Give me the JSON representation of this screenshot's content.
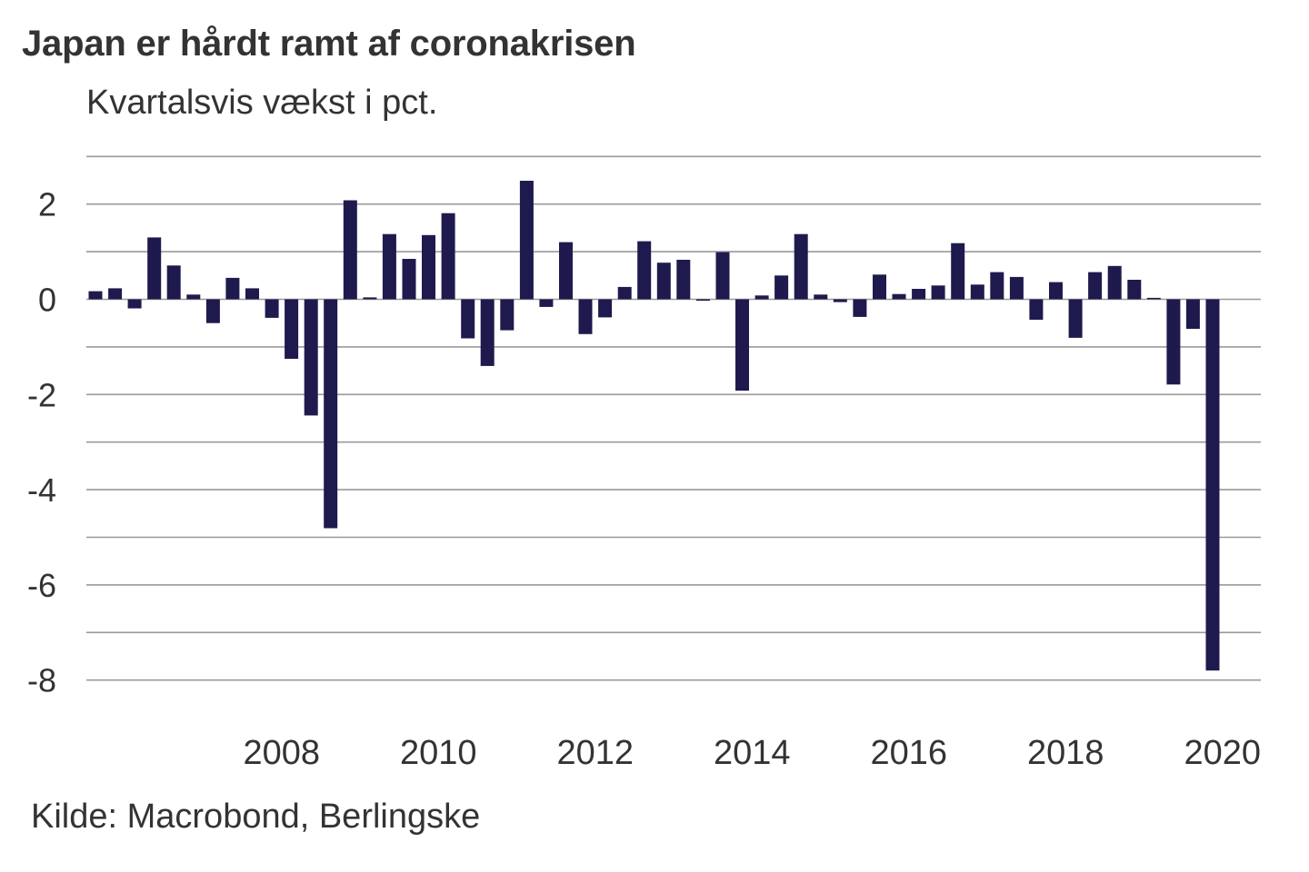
{
  "chart_data": {
    "type": "bar",
    "title": "Japan er hårdt ramt af coronakrisen",
    "subtitle": "Kvartalsvis vækst i pct.",
    "source": "Kilde: Macrobond, Berlingske",
    "xlabel": "",
    "ylabel": "",
    "ylim": [
      -8.5,
      3
    ],
    "grid": true,
    "yticks": [
      2,
      0,
      -2,
      -4,
      -6,
      -8
    ],
    "ytick_labels": [
      "2",
      "0",
      "-2",
      "-4",
      "-6",
      "-8"
    ],
    "xtick_labels": [
      "2008",
      "2010",
      "2012",
      "2014",
      "2016",
      "2018",
      "2020"
    ],
    "bar_color": "#1f1a4d",
    "x_start": "2006Q1",
    "x_end": "2020Q2",
    "categories": [
      "2006Q1",
      "2006Q2",
      "2006Q3",
      "2006Q4",
      "2007Q1",
      "2007Q2",
      "2007Q3",
      "2007Q4",
      "2008Q1",
      "2008Q2",
      "2008Q3",
      "2008Q4",
      "2009Q1",
      "2009Q2",
      "2009Q3",
      "2009Q4",
      "2010Q1",
      "2010Q2",
      "2010Q3",
      "2010Q4",
      "2011Q1",
      "2011Q2",
      "2011Q3",
      "2011Q4",
      "2012Q1",
      "2012Q2",
      "2012Q3",
      "2012Q4",
      "2013Q1",
      "2013Q2",
      "2013Q3",
      "2013Q4",
      "2014Q1",
      "2014Q2",
      "2014Q3",
      "2014Q4",
      "2015Q1",
      "2015Q2",
      "2015Q3",
      "2015Q4",
      "2016Q1",
      "2016Q2",
      "2016Q3",
      "2016Q4",
      "2017Q1",
      "2017Q2",
      "2017Q3",
      "2017Q4",
      "2018Q1",
      "2018Q2",
      "2018Q3",
      "2018Q4",
      "2019Q1",
      "2019Q2",
      "2019Q3",
      "2019Q4",
      "2020Q1",
      "2020Q2"
    ],
    "values": [
      0.17,
      0.23,
      -0.19,
      1.3,
      0.71,
      0.1,
      -0.5,
      0.45,
      0.23,
      -0.39,
      -1.25,
      -2.44,
      -4.81,
      2.08,
      0.04,
      1.37,
      0.85,
      1.35,
      1.81,
      -0.82,
      -1.4,
      -0.65,
      2.49,
      -0.16,
      1.2,
      -0.73,
      -0.38,
      0.26,
      1.22,
      0.77,
      0.83,
      -0.03,
      0.99,
      -1.92,
      0.08,
      0.5,
      1.37,
      0.1,
      -0.06,
      -0.37,
      0.52,
      0.11,
      0.22,
      0.29,
      1.18,
      0.31,
      0.57,
      0.47,
      -0.43,
      0.36,
      -0.81,
      0.57,
      0.7,
      0.41,
      0.03,
      -1.79,
      -0.62,
      -7.8
    ]
  }
}
